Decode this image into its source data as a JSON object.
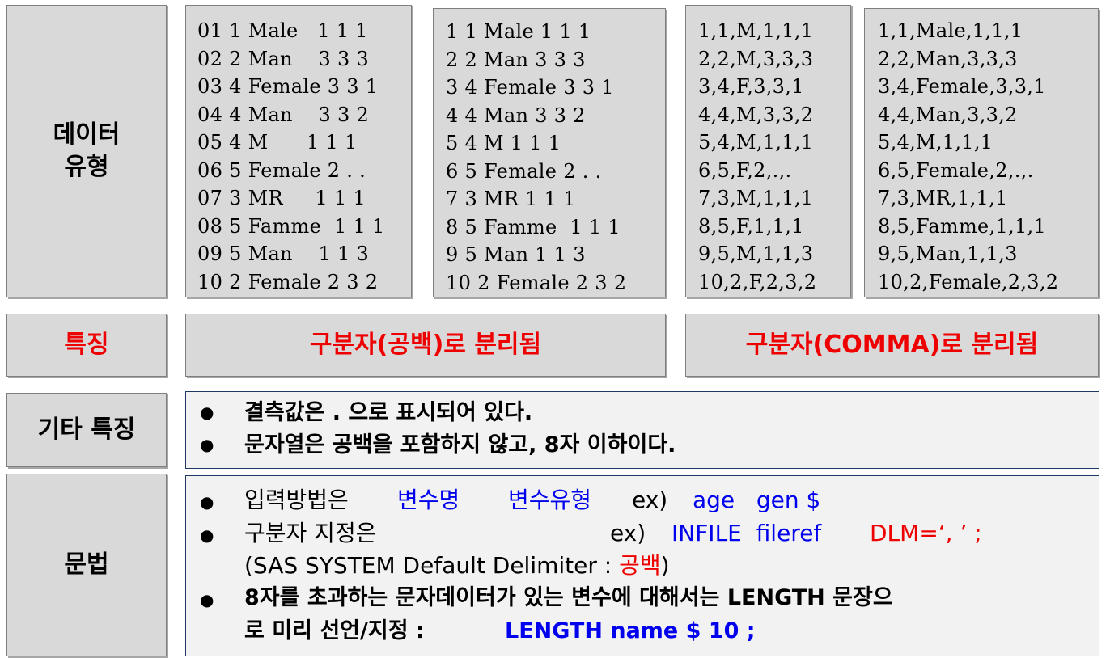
{
  "labels": {
    "data_type": [
      "데이터",
      "유형"
    ],
    "feature": "특징",
    "other_feature": "기타 특징",
    "syntax": "문법"
  },
  "data_blocks": {
    "block1": [
      "01 1 Male   1 1 1",
      "02 2 Man    3 3 3",
      "03 4 Female 3 3 1",
      "04 4 Man    3 3 2",
      "05 4 M      1 1 1",
      "06 5 Female 2 . .",
      "07 3 MR     1 1 1",
      "08 5 Famme  1 1 1",
      "09 5 Man    1 1 3",
      "10 2 Female 2 3 2"
    ],
    "block2": [
      "1 1 Male 1 1 1",
      "2 2 Man 3 3 3",
      "3 4 Female 3 3 1",
      "4 4 Man 3 3 2",
      "5 4 M 1 1 1",
      "6 5 Female 2 . .",
      "7 3 MR 1 1 1",
      "8 5 Famme  1 1 1",
      "9 5 Man 1 1 3",
      "10 2 Female 2 3 2"
    ],
    "block3": [
      "1,1,M,1,1,1",
      "2,2,M,3,3,3",
      "3,4,F,3,3,1",
      "4,4,M,3,3,2",
      "5,4,M,1,1,1",
      "6,5,F,2,.,.",
      "7,3,M,1,1,1",
      "8,5,F,1,1,1",
      "9,5,M,1,1,3",
      "10,2,F,2,3,2"
    ],
    "block4": [
      "1,1,Male,1,1,1",
      "2,2,Man,3,3,3",
      "3,4,Female,3,3,1",
      "4,4,Man,3,3,2",
      "5,4,M,1,1,1",
      "6,5,Female,2,.,.",
      "7,3,MR,1,1,1",
      "8,5,Famme,1,1,1",
      "9,5,Man,1,1,3",
      "10,2,Female,2,3,2"
    ]
  },
  "features": {
    "space": "구분자(공백)로 분리됨",
    "comma": "구분자(COMMA)로 분리됨"
  },
  "other": {
    "bullet": "●",
    "line1": "결측값은 . 으로 표시되어 있다.",
    "line2": "문자열은 공백을 포함하지 않고, 8자 이하이다."
  },
  "syntax": {
    "bullet": "●",
    "l1_text": "입력방법은",
    "l1_var_name": "변수명",
    "l1_var_type": "변수유형",
    "l1_ex": "ex)",
    "l1_code": "age   gen $",
    "l2_text": "구분자 지정은",
    "l2_ex": "ex)",
    "l2_code": "INFILE  fileref",
    "l2_dlm": "DLM=‘, ’ ;",
    "l3_open": "(SAS SYSTEM Default Delimiter :",
    "l3_value": "공백",
    "l3_close": ")",
    "l4_text": "8자를 초과하는 문자데이터가 있는 변수에 대해서는 LENGTH 문장으",
    "l5_text": "로 미리 선언/지정 :",
    "l5_code": "LENGTH name $ 10 ;"
  }
}
